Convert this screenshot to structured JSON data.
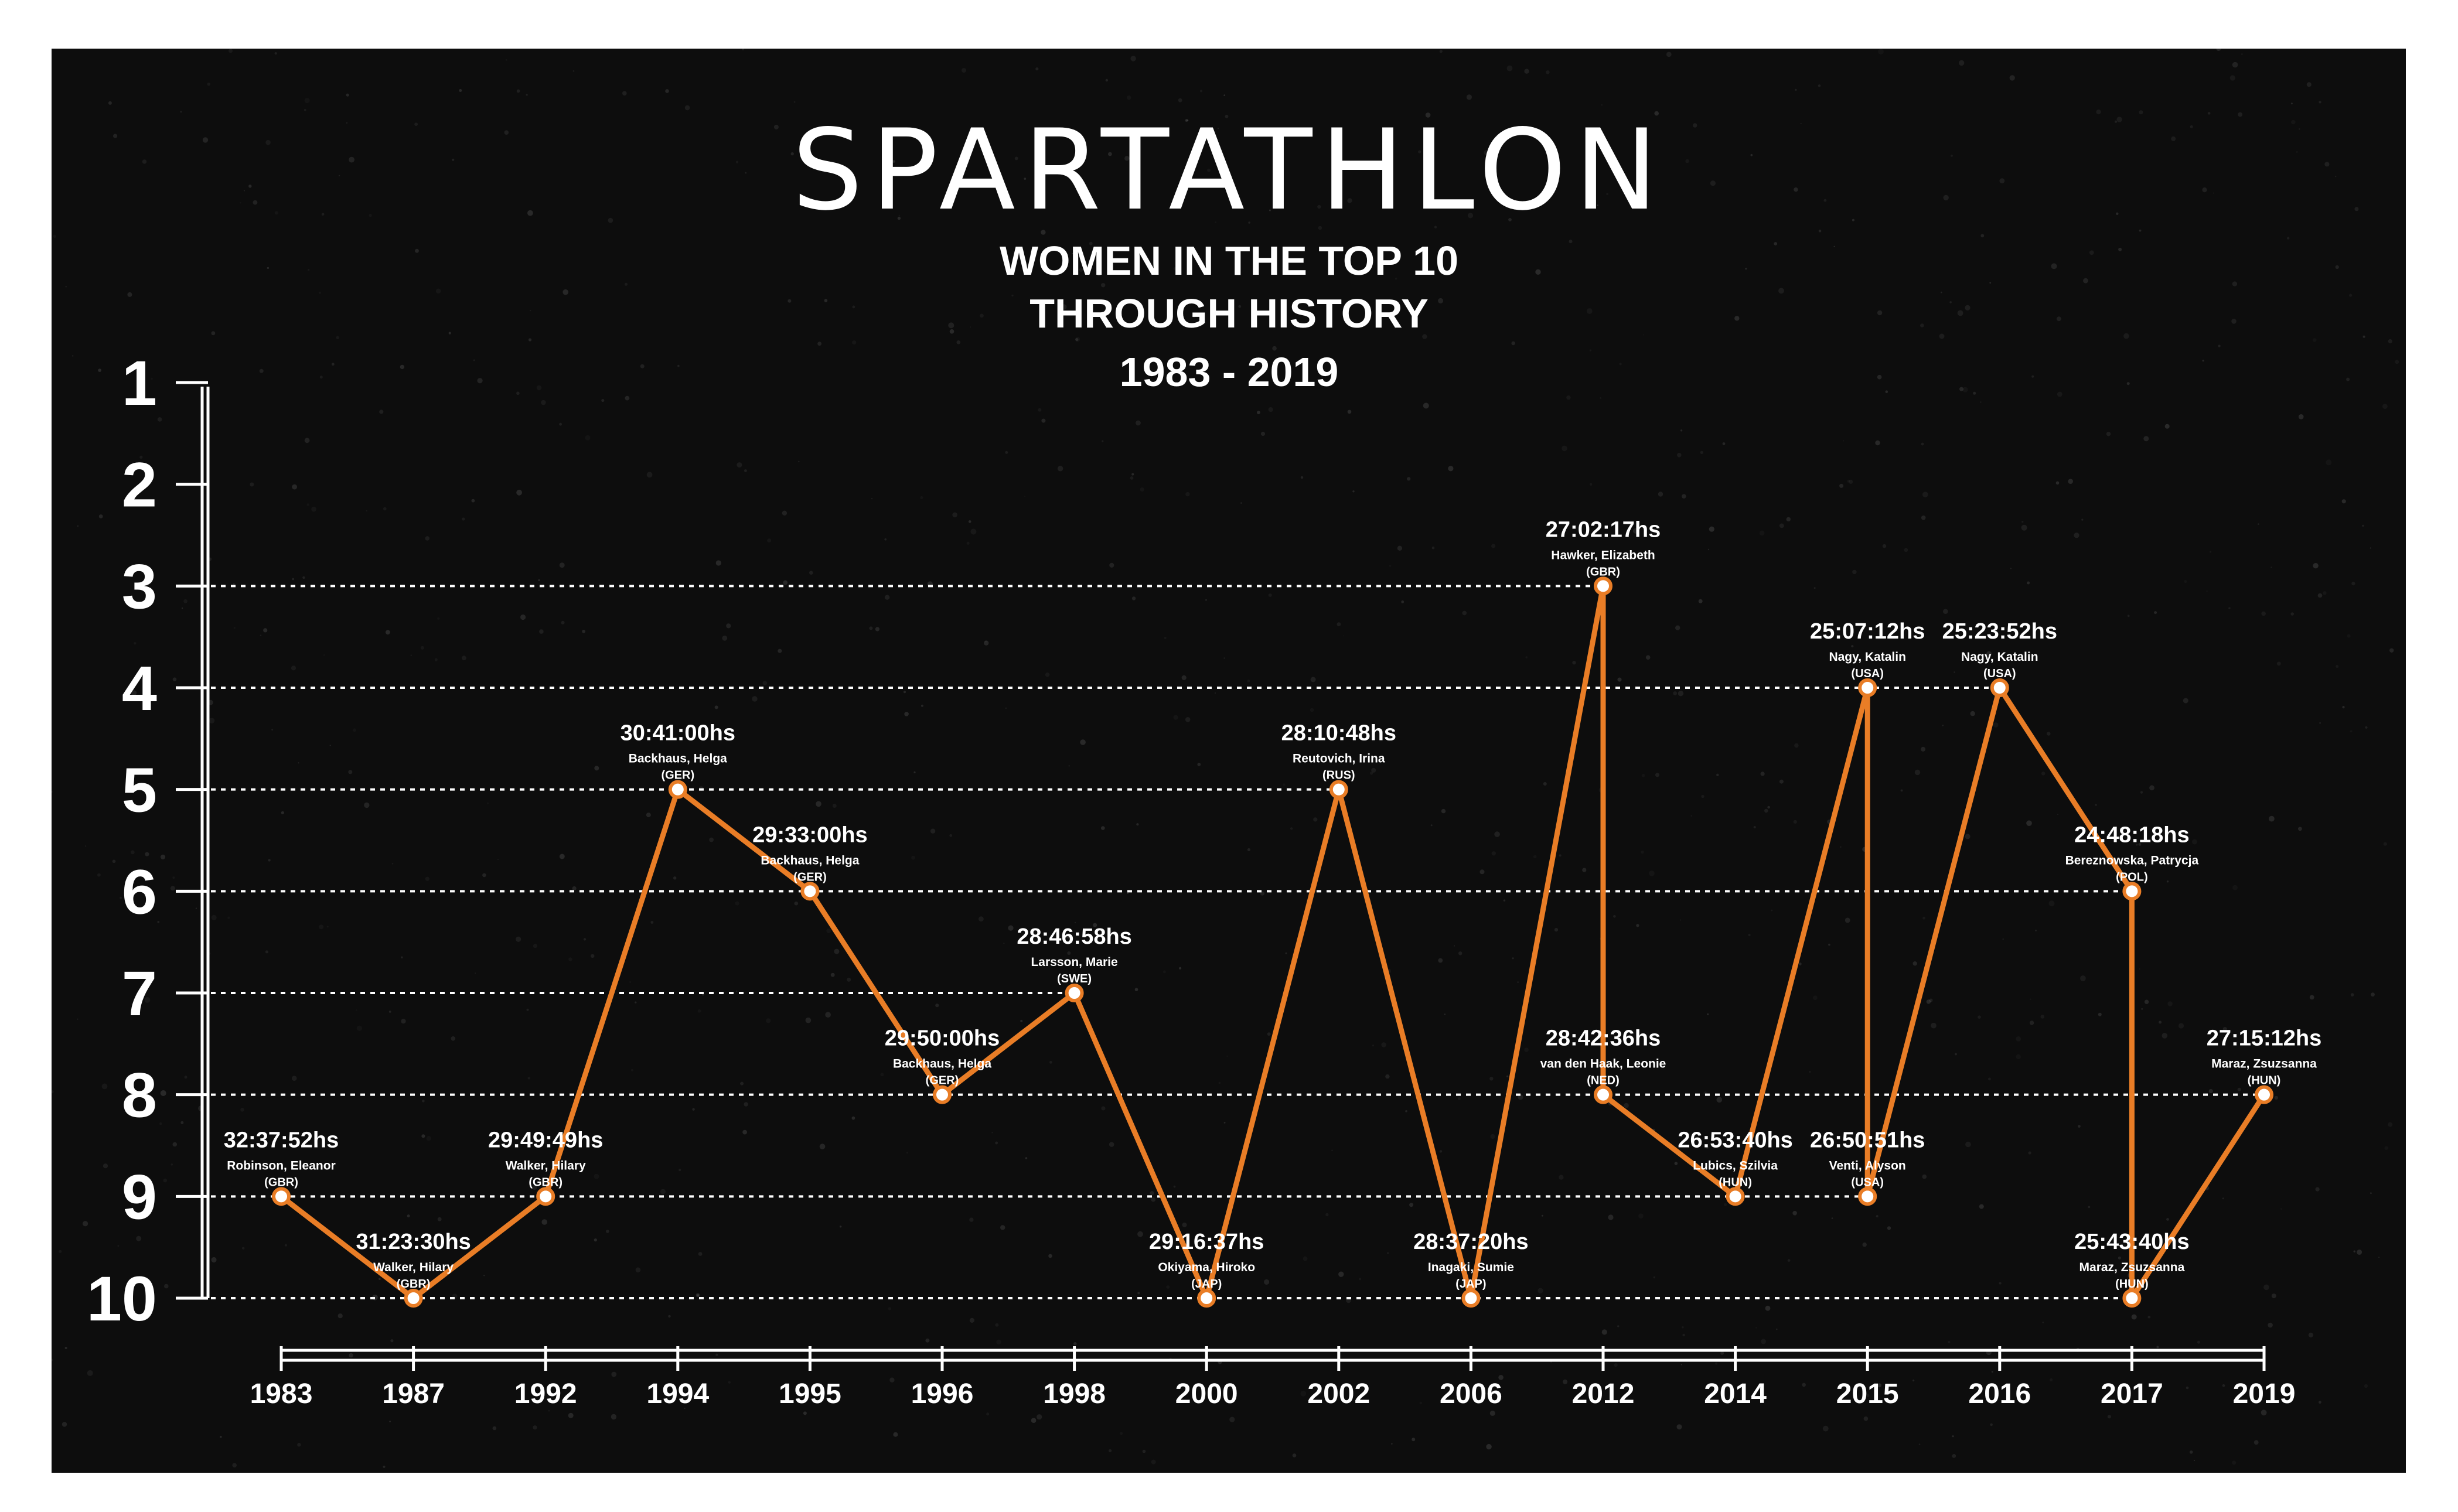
{
  "header": {
    "title": "SPARTATHLON",
    "subtitle_lines": [
      "WOMEN IN THE TOP 10",
      "THROUGH HISTORY",
      "1983 - 2019"
    ]
  },
  "colors": {
    "background": "#0d0d0d",
    "line": "#e97d26",
    "text": "#ffffff",
    "marker_fill": "#ffffff"
  },
  "chart_data": {
    "type": "line",
    "title": "SPARTATHLON",
    "subtitle": "WOMEN IN THE TOP 10 THROUGH HISTORY 1983 - 2019",
    "xlabel": "",
    "ylabel": "",
    "y_axis_inverted": true,
    "ylim": [
      1,
      10
    ],
    "y_ticks": [
      "1",
      "2",
      "3",
      "4",
      "5",
      "6",
      "7",
      "8",
      "9",
      "10"
    ],
    "x_categories": [
      "1983",
      "1987",
      "1992",
      "1994",
      "1995",
      "1996",
      "1998",
      "2000",
      "2002",
      "2006",
      "2012",
      "2014",
      "2015",
      "2016",
      "2017",
      "2019"
    ],
    "grid": "dotted lines at each position reached",
    "points": [
      {
        "year": "1983",
        "position": 9,
        "time": "32:37:52hs",
        "name": "Robinson, Eleanor",
        "country": "(GBR)"
      },
      {
        "year": "1987",
        "position": 10,
        "time": "31:23:30hs",
        "name": "Walker, Hilary",
        "country": "(GBR)"
      },
      {
        "year": "1992",
        "position": 9,
        "time": "29:49:49hs",
        "name": "Walker, Hilary",
        "country": "(GBR)"
      },
      {
        "year": "1994",
        "position": 5,
        "time": "30:41:00hs",
        "name": "Backhaus, Helga",
        "country": "(GER)"
      },
      {
        "year": "1995",
        "position": 6,
        "time": "29:33:00hs",
        "name": "Backhaus, Helga",
        "country": "(GER)"
      },
      {
        "year": "1996",
        "position": 8,
        "time": "29:50:00hs",
        "name": "Backhaus, Helga",
        "country": "(GER)"
      },
      {
        "year": "1998",
        "position": 7,
        "time": "28:46:58hs",
        "name": "Larsson, Marie",
        "country": "(SWE)"
      },
      {
        "year": "2000",
        "position": 10,
        "time": "29:16:37hs",
        "name": "Okiyama, Hiroko",
        "country": "(JAP)"
      },
      {
        "year": "2002",
        "position": 5,
        "time": "28:10:48hs",
        "name": "Reutovich, Irina",
        "country": "(RUS)"
      },
      {
        "year": "2006",
        "position": 10,
        "time": "28:37:20hs",
        "name": "Inagaki, Sumie",
        "country": "(JAP)"
      },
      {
        "year": "2012",
        "position": 3,
        "time": "27:02:17hs",
        "name": "Hawker, Elizabeth",
        "country": "(GBR)"
      },
      {
        "year": "2012",
        "position": 8,
        "time": "28:42:36hs",
        "name": "van den Haak, Leonie",
        "country": "(NED)"
      },
      {
        "year": "2014",
        "position": 9,
        "time": "26:53:40hs",
        "name": "Lubics, Szilvia",
        "country": "(HUN)"
      },
      {
        "year": "2015",
        "position": 4,
        "time": "25:07:12hs",
        "name": "Nagy, Katalin",
        "country": "(USA)"
      },
      {
        "year": "2015",
        "position": 9,
        "time": "26:50:51hs",
        "name": "Venti, Alyson",
        "country": "(USA)"
      },
      {
        "year": "2016",
        "position": 4,
        "time": "25:23:52hs",
        "name": "Nagy, Katalin",
        "country": "(USA)"
      },
      {
        "year": "2017",
        "position": 6,
        "time": "24:48:18hs",
        "name": "Bereznowska, Patrycja",
        "country": "(POL)"
      },
      {
        "year": "2017",
        "position": 10,
        "time": "25:43:40hs",
        "name": "Maraz, Zsuzsanna",
        "country": "(HUN)"
      },
      {
        "year": "2019",
        "position": 8,
        "time": "27:15:12hs",
        "name": "Maraz, Zsuzsanna",
        "country": "(HUN)"
      }
    ]
  }
}
